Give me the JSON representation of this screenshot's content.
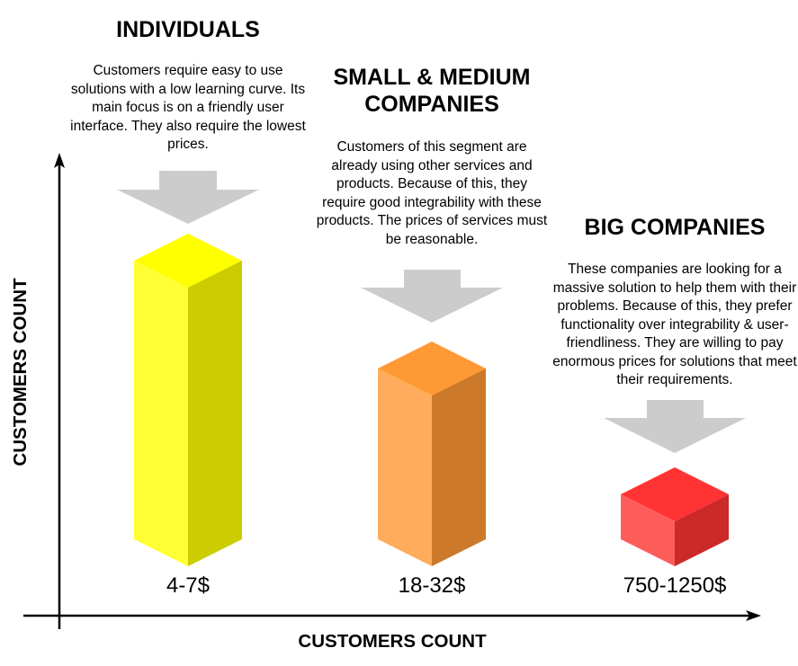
{
  "segments": [
    {
      "title": "INDIVIDUALS",
      "description": "Customers require easy to use solutions with a low learning curve. Its main focus is on a friendly user interface.  They also require the lowest prices.",
      "price": "4-7$",
      "colors": {
        "top": "#ffff00",
        "front": "#ffff33",
        "side": "#cccc00"
      }
    },
    {
      "title": "SMALL & MEDIUM COMPANIES",
      "description": "Customers of this segment are already using other services and products. Because of this, they require good integrability with these products. The prices of services must be reasonable.",
      "price": "18-32$",
      "colors": {
        "top": "#ff9933",
        "front": "#ffad5c",
        "side": "#cc7a29"
      }
    },
    {
      "title": "BIG COMPANIES",
      "description": "These companies are looking for a massive solution to help them with their problems. Because of this, they prefer functionality over integrability & user-friendliness. They are willing to pay enormous prices for solutions that meet their requirements.",
      "price": "750-1250$",
      "colors": {
        "top": "#ff3333",
        "front": "#ff5c5c",
        "side": "#cc2929"
      }
    }
  ],
  "axes": {
    "y_label": "CUSTOMERS COUNT",
    "x_label": "CUSTOMERS COUNT"
  },
  "colors": {
    "arrow": "#cccccc",
    "axis": "#000000"
  }
}
